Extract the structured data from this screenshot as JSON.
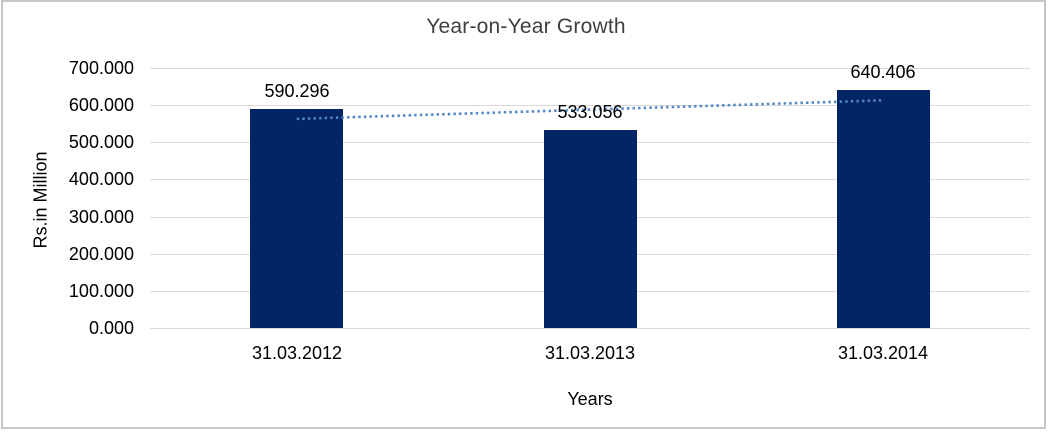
{
  "chart_data": {
    "type": "bar",
    "title": "Year-on-Year Growth",
    "categories": [
      "31.03.2012",
      "31.03.2013",
      "31.03.2014"
    ],
    "values": [
      590.296,
      533.056,
      640.406
    ],
    "data_labels": [
      "590.296",
      "533.056",
      "640.406"
    ],
    "xlabel": "Years",
    "ylabel": "Rs.in Million",
    "ylim": [
      0,
      700
    ],
    "y_tick_labels": [
      "700.000",
      "600.000",
      "500.000",
      "400.000",
      "300.000",
      "200.000",
      "100.000",
      "0.000"
    ],
    "grid": true,
    "legend": "none",
    "trendline": {
      "type": "linear",
      "style": "dotted",
      "series": "values"
    },
    "colors": {
      "bar": "#032465",
      "trendline": "#4f86c6",
      "gridline": "#d9d9d9",
      "title_text": "#3f3f3f",
      "axis_text": "#000000",
      "frame_border": "#c6c6c6",
      "background": "#ffffff"
    }
  }
}
